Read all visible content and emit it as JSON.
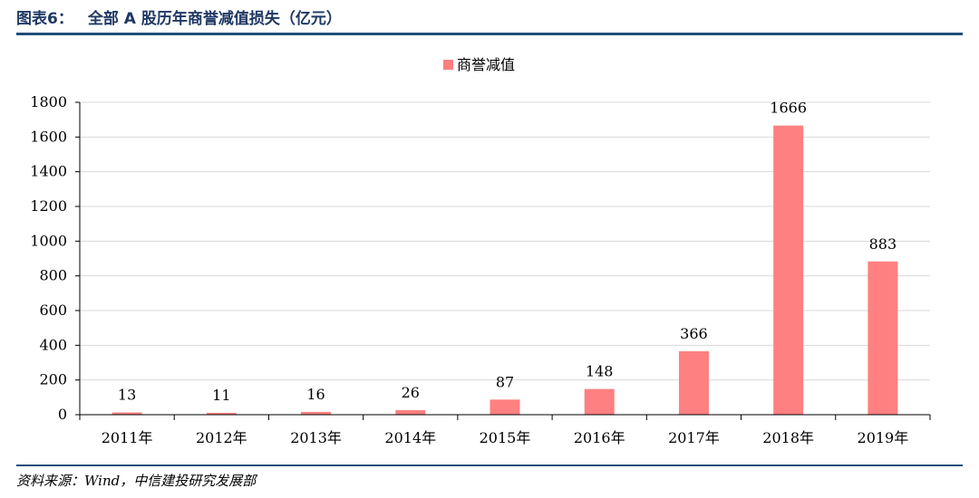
{
  "header": {
    "figure_number": "图表6：",
    "title": "全部 A 股历年商誉减值损失（亿元）"
  },
  "footer": {
    "source": "资料来源：Wind，中信建投研究发展部"
  },
  "colors": {
    "bar": "#ff8080",
    "rule": "#1f4e79",
    "title": "#1f3864"
  },
  "chart_data": {
    "type": "bar",
    "title": "全部 A 股历年商誉减值损失（亿元）",
    "xlabel": "",
    "ylabel": "",
    "categories": [
      "2011年",
      "2012年",
      "2013年",
      "2014年",
      "2015年",
      "2016年",
      "2017年",
      "2018年",
      "2019年"
    ],
    "series": [
      {
        "name": "商誉减值",
        "values": [
          13,
          11,
          16,
          26,
          87,
          148,
          366,
          1666,
          883
        ]
      }
    ],
    "data_labels": [
      "13",
      "11",
      "16",
      "26",
      "87",
      "148",
      "366",
      "1666",
      "883"
    ],
    "ylim": [
      0,
      1800
    ],
    "yticks": [
      0,
      200,
      400,
      600,
      800,
      1000,
      1200,
      1400,
      1600,
      1800
    ],
    "grid": true,
    "legend_position": "top-center"
  }
}
